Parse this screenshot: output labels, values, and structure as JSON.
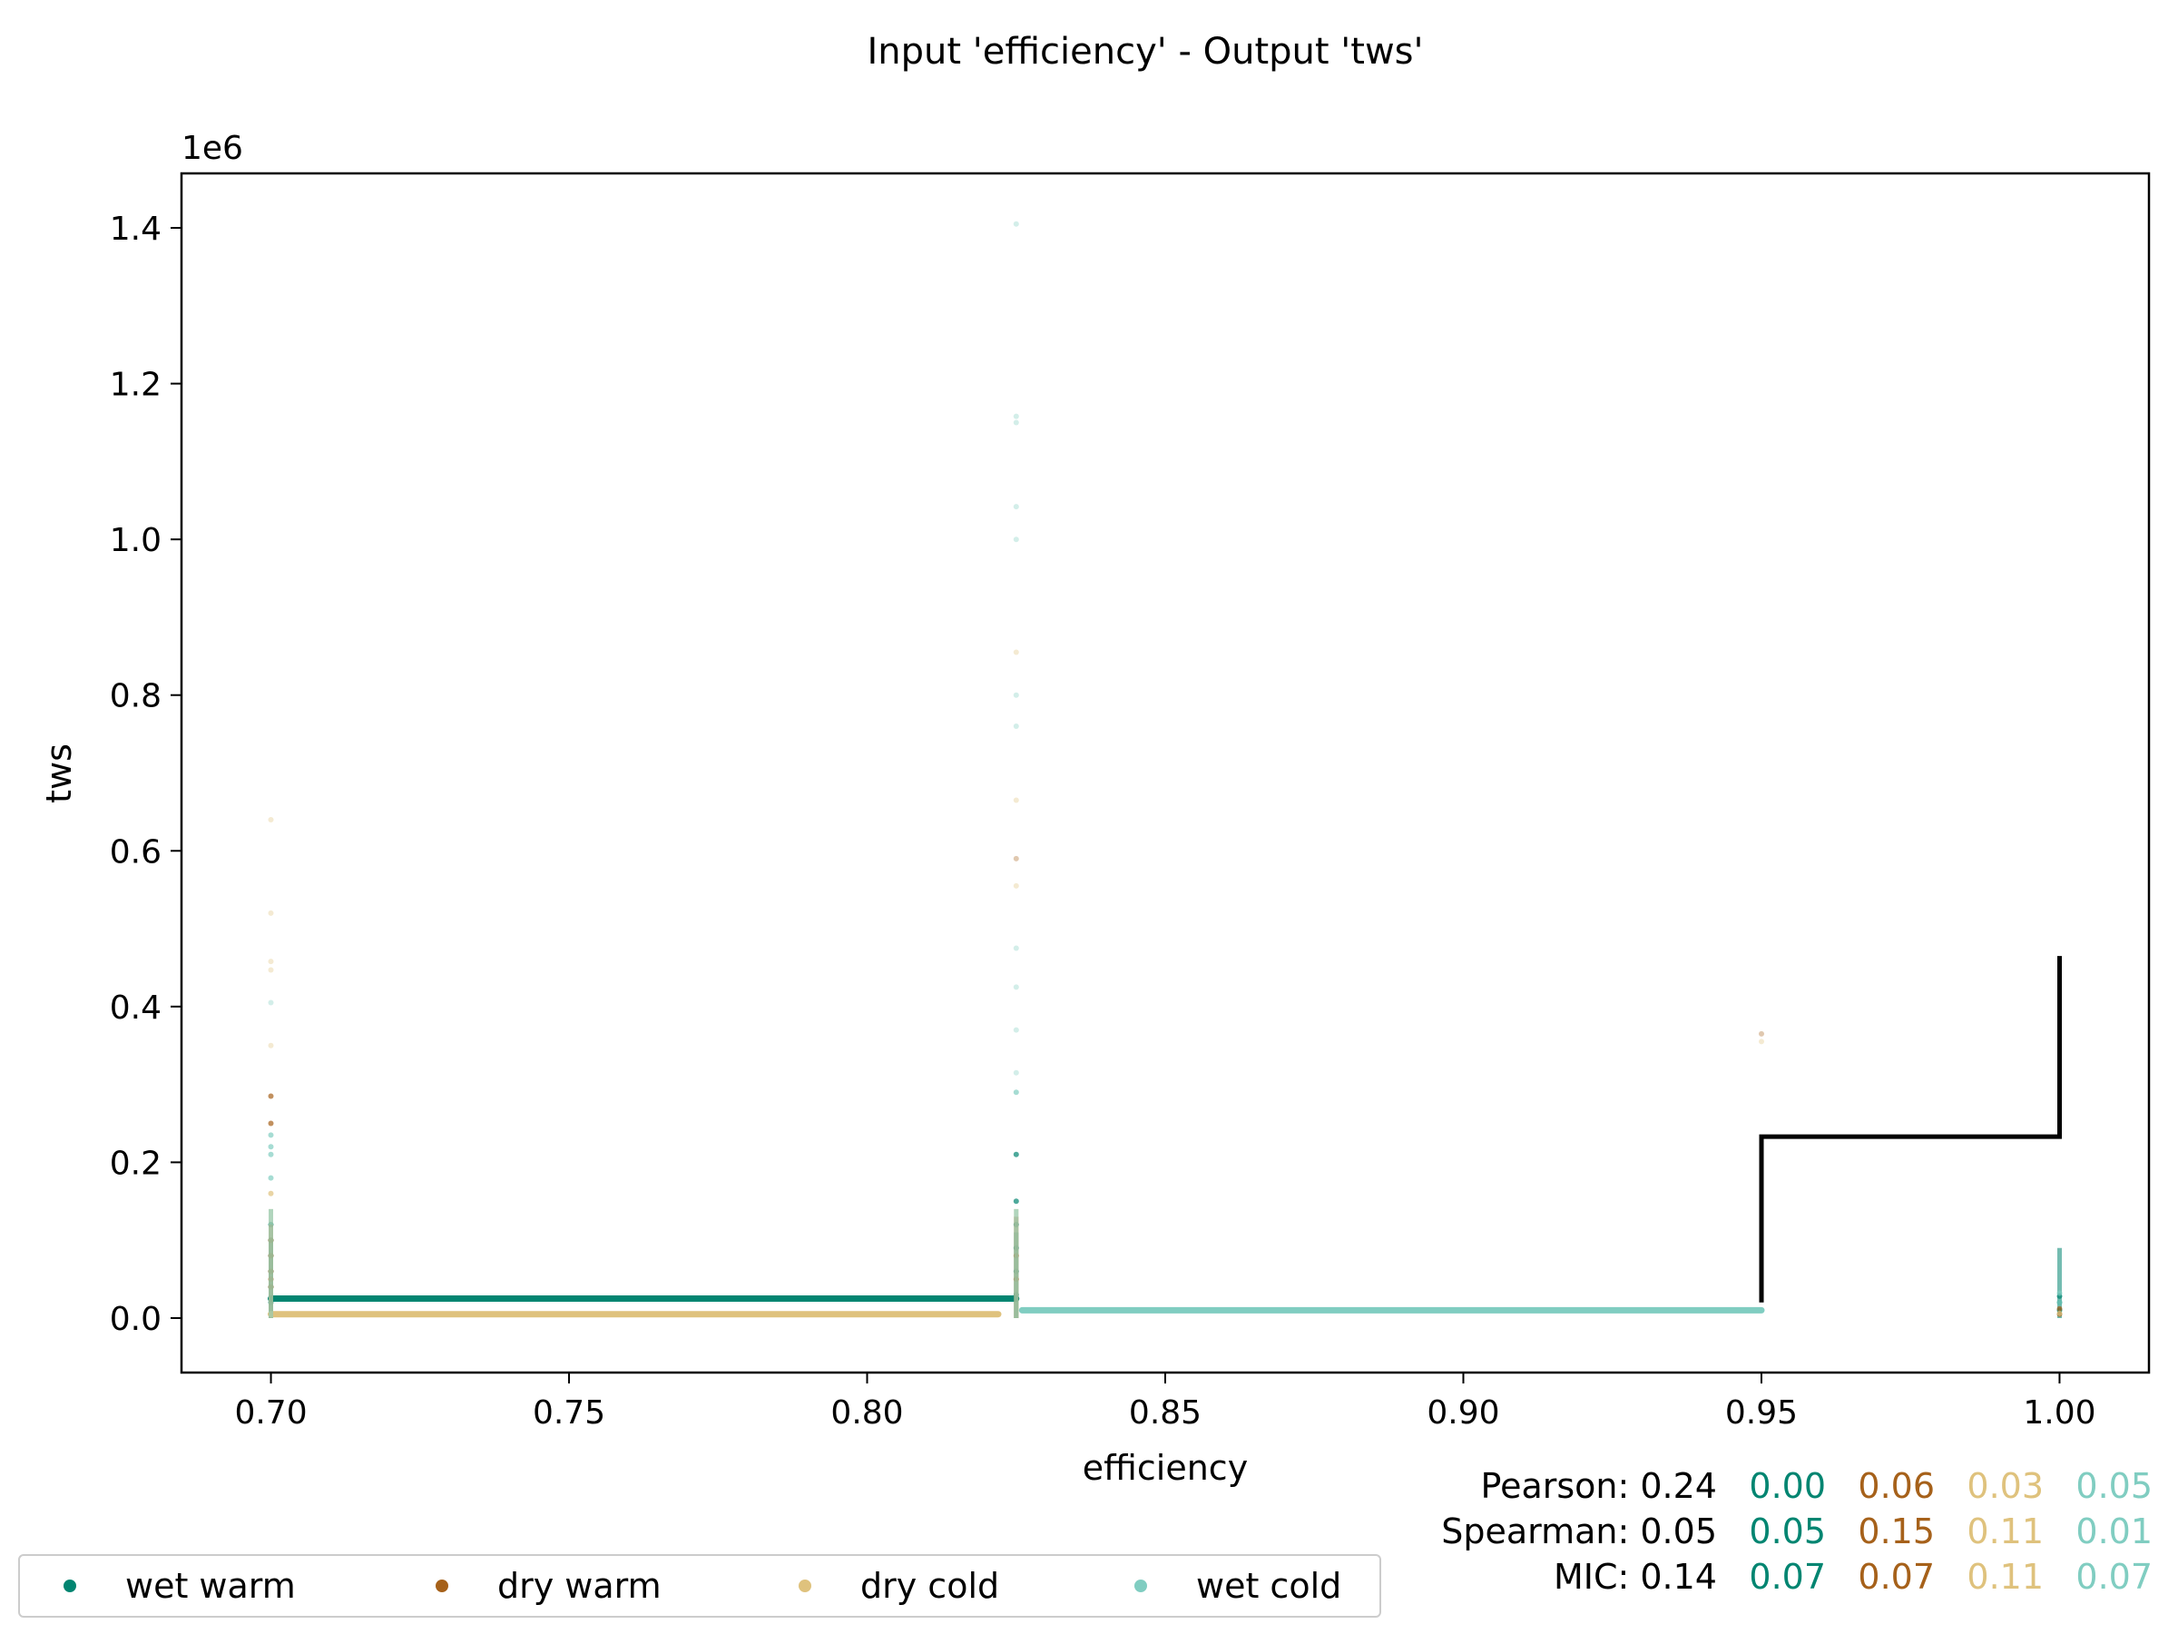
{
  "chart_data": {
    "type": "scatter",
    "title": "Input 'efficiency' - Output 'tws'",
    "xlabel": "efficiency",
    "ylabel": "tws",
    "y_offset_label": "1e6",
    "xlim": [
      0.685,
      1.015
    ],
    "ylim": [
      -70000,
      1470000
    ],
    "x_ticks": [
      0.7,
      0.75,
      0.8,
      0.85,
      0.9,
      0.95,
      1.0
    ],
    "x_tick_labels": [
      "0.70",
      "0.75",
      "0.80",
      "0.85",
      "0.90",
      "0.95",
      "1.00"
    ],
    "y_ticks": [
      0,
      200000,
      400000,
      600000,
      800000,
      1000000,
      1200000,
      1400000
    ],
    "y_tick_labels": [
      "0.0",
      "0.2",
      "0.4",
      "0.6",
      "0.8",
      "1.0",
      "1.2",
      "1.4"
    ],
    "grid": false,
    "legend_position": "bottom-left, below plot",
    "series": [
      {
        "name": "wet warm",
        "color": "#018571",
        "segment": {
          "x": [
            0.7,
            0.825
          ],
          "y": 25000
        },
        "points": [
          {
            "x": 0.7,
            "y": [
              20000,
              40000,
              60000,
              80000,
              100000,
              120000
            ]
          },
          {
            "x": 0.825,
            "y": [
              30000,
              60000,
              90000,
              120000,
              150000,
              210000
            ]
          },
          {
            "x": 1.0,
            "y": [
              10000,
              20000,
              28000
            ]
          }
        ]
      },
      {
        "name": "dry warm",
        "color": "#a6611a",
        "segment": null,
        "points": [
          {
            "x": 0.7,
            "y": [
              40000,
              50000,
              60000,
              80000,
              100000,
              250000,
              285000
            ]
          },
          {
            "x": 0.825,
            "y": [
              50000,
              80000,
              590000
            ]
          },
          {
            "x": 0.95,
            "y": [
              365000
            ]
          },
          {
            "x": 1.0,
            "y": [
              5000,
              12000
            ]
          }
        ]
      },
      {
        "name": "dry cold",
        "color": "#dfc27d",
        "segment": {
          "x": [
            0.7,
            0.822
          ],
          "y": 5000
        },
        "points": [
          {
            "x": 0.7,
            "y": [
              160000,
              350000,
              447000,
              458000,
              520000,
              640000
            ]
          },
          {
            "x": 0.825,
            "y": [
              555000,
              665000,
              855000
            ]
          },
          {
            "x": 0.95,
            "y": [
              355000
            ]
          },
          {
            "x": 1.0,
            "y": [
              6000
            ]
          }
        ]
      },
      {
        "name": "wet cold",
        "color": "#80cdc1",
        "segment": {
          "x": [
            0.826,
            0.95
          ],
          "y": 10000
        },
        "points": [
          {
            "x": 0.7,
            "y": [
              180000,
              210000,
              220000,
              235000,
              405000
            ]
          },
          {
            "x": 0.825,
            "y": [
              290000,
              315000,
              370000,
              425000,
              475000,
              760000,
              800000,
              1000000,
              1042000,
              1150000,
              1158000,
              1405000
            ]
          },
          {
            "x": 1.0,
            "y": [
              20000,
              32000
            ]
          }
        ]
      }
    ],
    "step_line": {
      "color": "#000000",
      "x": [
        0.95,
        0.95,
        1.0,
        1.0
      ],
      "y": [
        20000,
        233000,
        233000,
        465000
      ]
    },
    "stats": {
      "headers": [
        "Pearson:",
        "Spearman:",
        "MIC:"
      ],
      "rows": [
        {
          "label": "Pearson:",
          "overall": "0.24",
          "values": [
            "0.00",
            "0.06",
            "0.03",
            "0.05"
          ]
        },
        {
          "label": "Spearman:",
          "overall": "0.05",
          "values": [
            "0.05",
            "0.15",
            "0.11",
            "0.01"
          ]
        },
        {
          "label": "MIC:",
          "overall": "0.14",
          "values": [
            "0.07",
            "0.07",
            "0.11",
            "0.07"
          ]
        }
      ]
    }
  }
}
